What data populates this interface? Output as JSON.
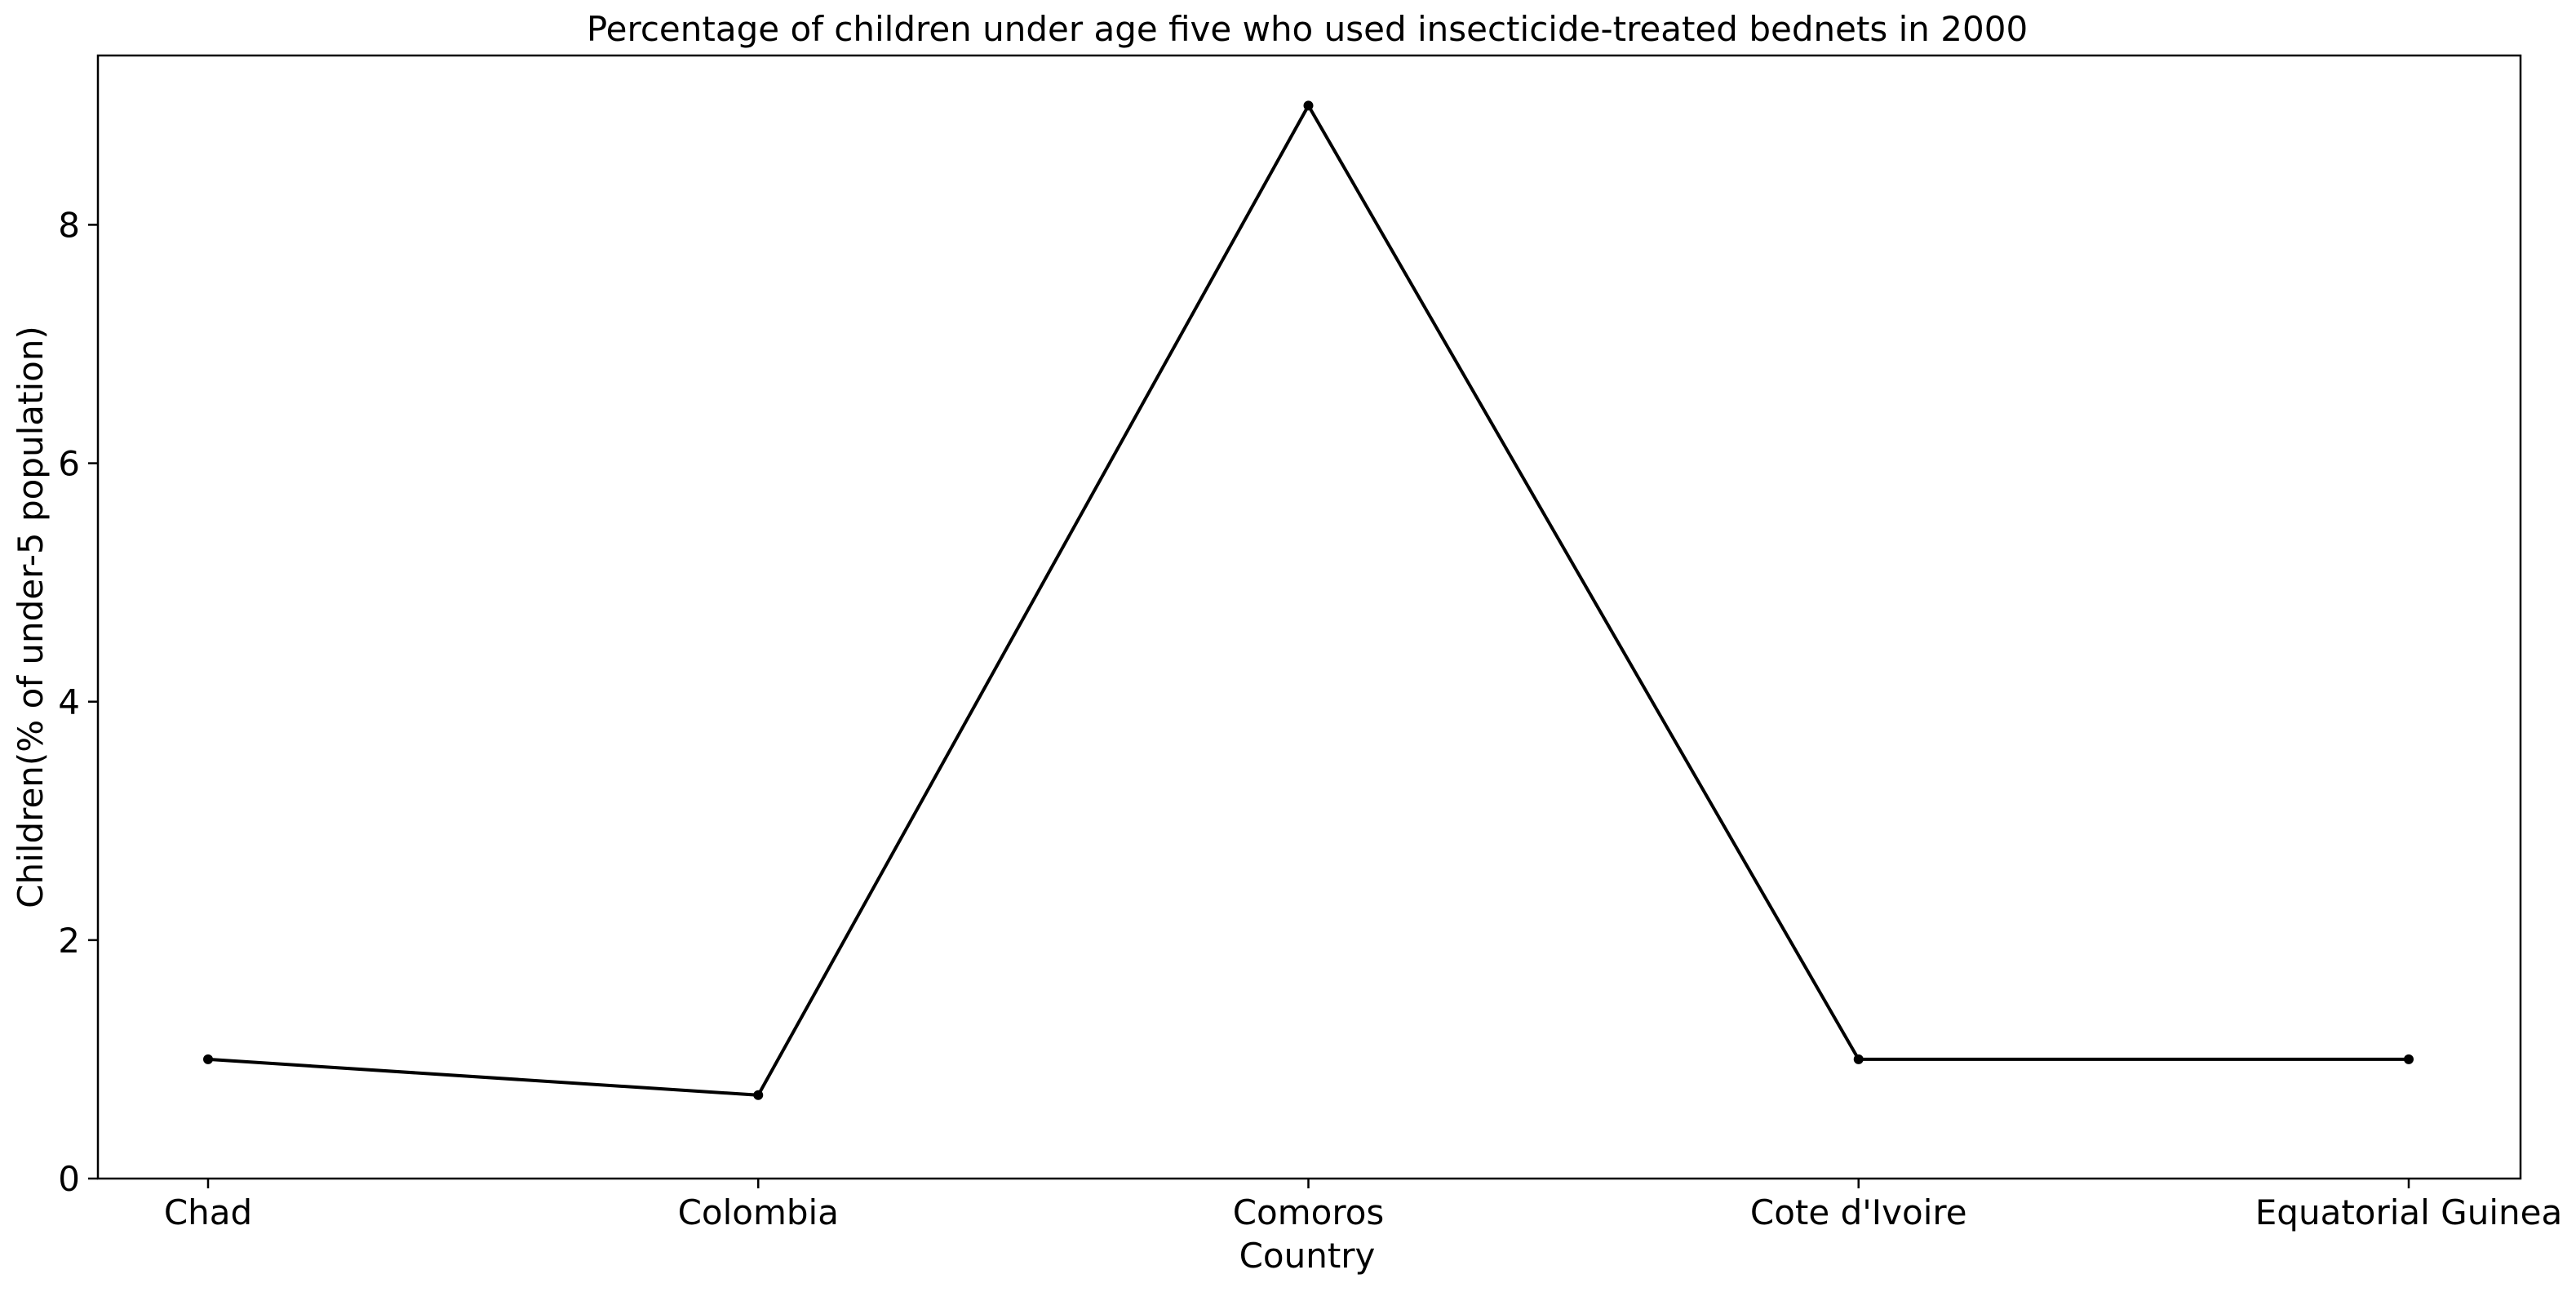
{
  "chart_data": {
    "type": "line",
    "title": "Percentage of children under age five who used insecticide-treated bednets in 2000",
    "xlabel": "Country",
    "ylabel": "Children(% of under-5 population)",
    "categories": [
      "Chad",
      "Colombia",
      "Comoros",
      "Cote d'Ivoire",
      "Equatorial Guinea"
    ],
    "series": [
      {
        "values": [
          1.0,
          0.7,
          9.0,
          1.0,
          1.0
        ]
      }
    ],
    "ylim": [
      0,
      9.42
    ],
    "yticks": [
      0,
      2,
      4,
      6,
      8
    ],
    "ytick_labels": [
      "0",
      "2",
      "4",
      "6",
      "8"
    ],
    "grid": false,
    "line_color": "#000000",
    "marker": "dot"
  }
}
